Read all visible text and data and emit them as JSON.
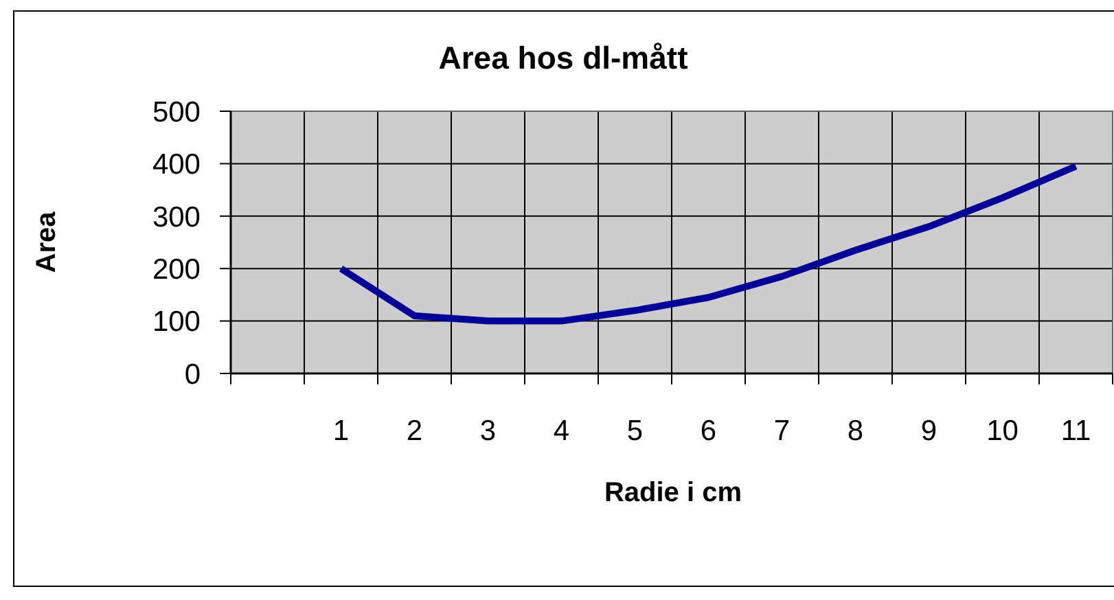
{
  "chart_data": {
    "type": "line",
    "title": "Area hos dl-mått",
    "xlabel": "Radie i cm",
    "ylabel": "Area",
    "categories": [
      null,
      "1",
      "2",
      "3",
      "4",
      "5",
      "6",
      "7",
      "8",
      "9",
      "10",
      "11"
    ],
    "series": [
      {
        "color": "#000099",
        "values": [
          null,
          200,
          110,
          100,
          100,
          120,
          145,
          185,
          235,
          280,
          335,
          395
        ]
      }
    ],
    "ylim": [
      0,
      500
    ],
    "yticks": [
      0,
      100,
      200,
      300,
      400,
      500
    ],
    "grid": true,
    "marker": "none",
    "line_style": "solid"
  }
}
